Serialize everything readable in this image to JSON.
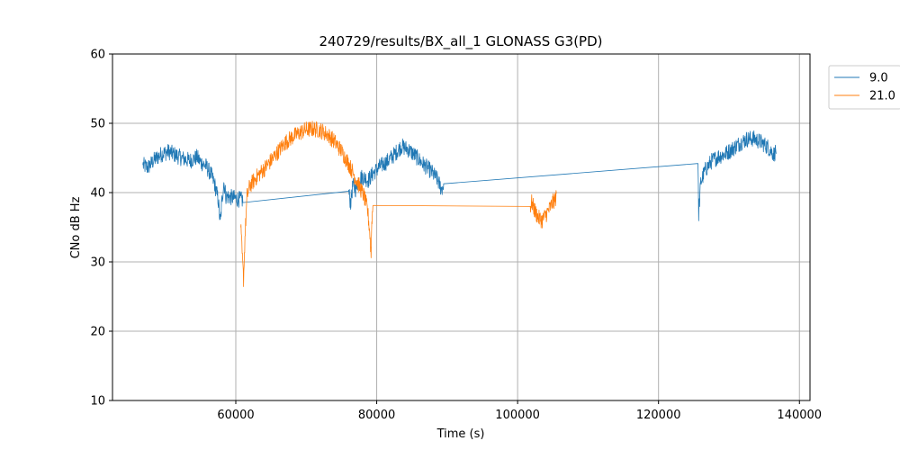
{
  "chart_data": {
    "type": "line",
    "title": "240729/results/BX_all_1 GLONASS G3(PD)",
    "xlabel": "Time (s)",
    "ylabel": "CNo dB Hz",
    "xlim": [
      42500,
      141500
    ],
    "ylim": [
      10,
      60
    ],
    "xticks": [
      60000,
      80000,
      100000,
      120000,
      140000
    ],
    "yticks": [
      10,
      20,
      30,
      40,
      50,
      60
    ],
    "xtick_labels": [
      "60000",
      "80000",
      "100000",
      "120000",
      "140000"
    ],
    "ytick_labels": [
      "10",
      "20",
      "30",
      "40",
      "50",
      "60"
    ],
    "grid": true,
    "legend_position": "outside-top-right",
    "series": [
      {
        "name": "9.0",
        "color": "#1f77b4",
        "points": [
          [
            46800,
            44.0
          ],
          [
            47500,
            43.6
          ],
          [
            48500,
            44.8
          ],
          [
            49500,
            45.6
          ],
          [
            50500,
            45.9
          ],
          [
            51500,
            45.4
          ],
          [
            52500,
            44.9
          ],
          [
            53500,
            44.6
          ],
          [
            54500,
            45.1
          ],
          [
            55000,
            44.4
          ],
          [
            55800,
            43.8
          ],
          [
            56500,
            42.6
          ],
          [
            57000,
            41.2
          ],
          [
            57500,
            39.0
          ],
          [
            57800,
            35.5
          ],
          [
            58000,
            38.5
          ],
          [
            58300,
            41.5
          ],
          [
            58600,
            39.5
          ],
          [
            61000,
            38.9
          ],
          [
            76000,
            40.2
          ],
          [
            76300,
            38.5
          ],
          [
            76600,
            41.0
          ],
          [
            77000,
            40.5
          ],
          [
            77500,
            42.0
          ],
          [
            78000,
            42.3
          ],
          [
            78800,
            41.8
          ],
          [
            79500,
            42.8
          ],
          [
            80500,
            43.8
          ],
          [
            81500,
            44.5
          ],
          [
            82500,
            45.5
          ],
          [
            83500,
            46.7
          ],
          [
            84500,
            46.2
          ],
          [
            85500,
            45.3
          ],
          [
            86500,
            44.2
          ],
          [
            87500,
            43.3
          ],
          [
            88500,
            42.1
          ],
          [
            89200,
            40.5
          ],
          [
            89500,
            41.2
          ],
          [
            125600,
            44.2
          ],
          [
            125700,
            37.0
          ],
          [
            126000,
            41.5
          ],
          [
            126600,
            43.2
          ],
          [
            127500,
            44.5
          ],
          [
            128500,
            45.2
          ],
          [
            129500,
            45.6
          ],
          [
            130500,
            46.3
          ],
          [
            131500,
            47.1
          ],
          [
            132500,
            47.7
          ],
          [
            133500,
            47.8
          ],
          [
            134500,
            47.3
          ],
          [
            135500,
            46.6
          ],
          [
            136400,
            45.5
          ],
          [
            136700,
            46.2
          ]
        ]
      },
      {
        "name": "21.0",
        "color": "#ff7f0e",
        "points": [
          [
            60700,
            35.0
          ],
          [
            60900,
            31.0
          ],
          [
            61100,
            27.5
          ],
          [
            61300,
            33.5
          ],
          [
            61600,
            39.5
          ],
          [
            62000,
            41.0
          ],
          [
            63000,
            42.3
          ],
          [
            64000,
            43.4
          ],
          [
            65000,
            44.6
          ],
          [
            66000,
            45.9
          ],
          [
            67000,
            47.2
          ],
          [
            68000,
            48.0
          ],
          [
            69000,
            48.6
          ],
          [
            70000,
            49.1
          ],
          [
            71000,
            49.2
          ],
          [
            72000,
            49.0
          ],
          [
            73000,
            48.4
          ],
          [
            74000,
            47.4
          ],
          [
            75000,
            46.0
          ],
          [
            76000,
            44.2
          ],
          [
            76800,
            42.5
          ],
          [
            77500,
            41.0
          ],
          [
            78200,
            39.5
          ],
          [
            78700,
            37.5
          ],
          [
            79000,
            34.5
          ],
          [
            79200,
            31.0
          ],
          [
            79300,
            36.0
          ],
          [
            79500,
            38.4
          ],
          [
            101800,
            38.0
          ],
          [
            102000,
            38.6
          ],
          [
            102500,
            37.2
          ],
          [
            103000,
            36.3
          ],
          [
            103500,
            36.0
          ],
          [
            104000,
            36.8
          ],
          [
            104500,
            37.6
          ],
          [
            105000,
            38.6
          ],
          [
            105500,
            39.3
          ]
        ]
      }
    ]
  }
}
